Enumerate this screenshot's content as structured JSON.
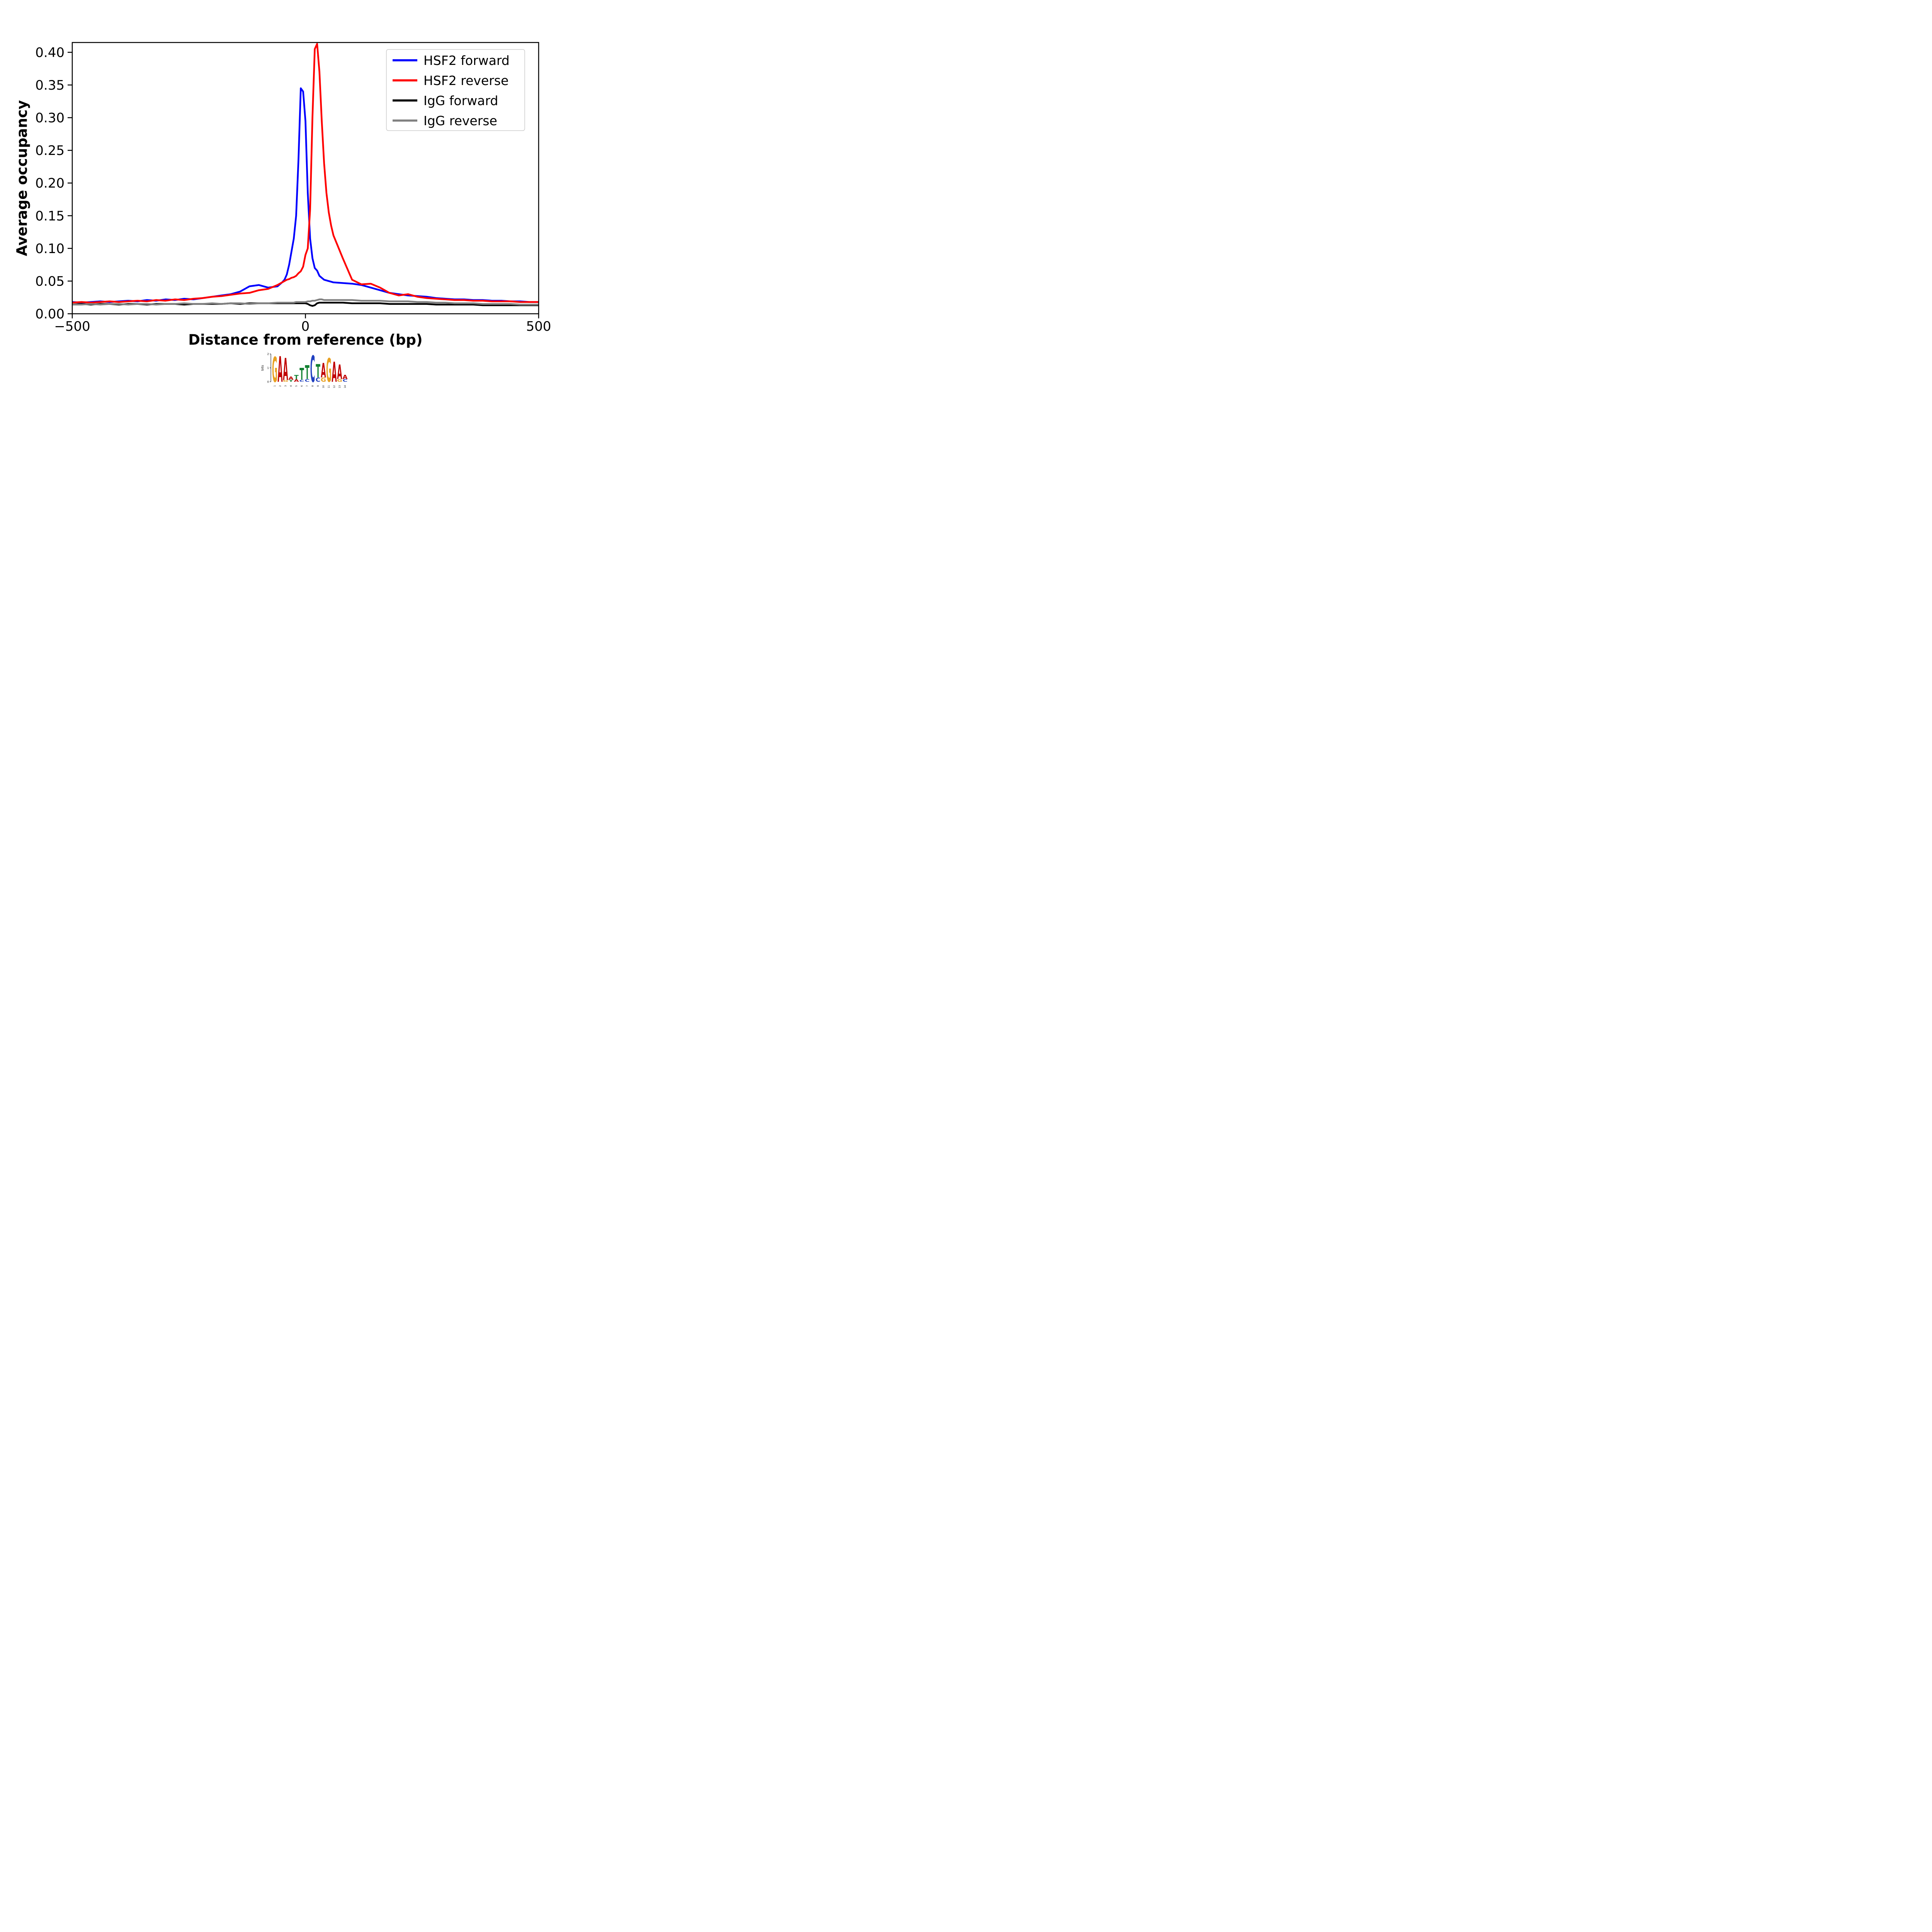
{
  "figure": {
    "background": "#ffffff"
  },
  "chart_data": {
    "type": "line",
    "title": "",
    "xlabel": "Distance from reference (bp)",
    "ylabel": "Average occupancy",
    "xlim": [
      -500,
      500
    ],
    "ylim": [
      0,
      0.415
    ],
    "xticks": [
      -500,
      0,
      500
    ],
    "xtick_labels": [
      "−500",
      "0",
      "500"
    ],
    "yticks": [
      0,
      0.05,
      0.1,
      0.15,
      0.2,
      0.25,
      0.3,
      0.35,
      0.4
    ],
    "ytick_labels": [
      "0.00",
      "0.05",
      "0.10",
      "0.15",
      "0.20",
      "0.25",
      "0.30",
      "0.35",
      "0.40"
    ],
    "grid": false,
    "legend_position": "upper right",
    "x": [
      -500,
      -480,
      -460,
      -440,
      -420,
      -400,
      -380,
      -360,
      -340,
      -320,
      -300,
      -280,
      -260,
      -240,
      -220,
      -200,
      -180,
      -160,
      -140,
      -120,
      -100,
      -80,
      -60,
      -50,
      -45,
      -40,
      -35,
      -30,
      -25,
      -20,
      -15,
      -10,
      -5,
      0,
      5,
      10,
      15,
      20,
      25,
      30,
      35,
      40,
      45,
      50,
      55,
      60,
      80,
      100,
      120,
      140,
      160,
      180,
      200,
      220,
      240,
      260,
      280,
      300,
      320,
      340,
      360,
      380,
      400,
      420,
      440,
      460,
      480,
      500
    ],
    "series": [
      {
        "name": "HSF2 forward",
        "color": "#0000ff",
        "y": [
          0.018,
          0.017,
          0.018,
          0.019,
          0.018,
          0.019,
          0.02,
          0.019,
          0.021,
          0.02,
          0.022,
          0.021,
          0.023,
          0.022,
          0.024,
          0.026,
          0.028,
          0.03,
          0.034,
          0.042,
          0.044,
          0.04,
          0.042,
          0.048,
          0.052,
          0.06,
          0.075,
          0.095,
          0.115,
          0.15,
          0.235,
          0.345,
          0.34,
          0.295,
          0.185,
          0.115,
          0.085,
          0.07,
          0.066,
          0.058,
          0.055,
          0.052,
          0.051,
          0.05,
          0.049,
          0.048,
          0.047,
          0.046,
          0.044,
          0.04,
          0.036,
          0.032,
          0.03,
          0.028,
          0.027,
          0.026,
          0.024,
          0.023,
          0.022,
          0.022,
          0.021,
          0.021,
          0.02,
          0.02,
          0.019,
          0.019,
          0.018,
          0.018
        ]
      },
      {
        "name": "HSF2 reverse",
        "color": "#ff0000",
        "y": [
          0.017,
          0.018,
          0.017,
          0.018,
          0.019,
          0.018,
          0.019,
          0.02,
          0.019,
          0.021,
          0.02,
          0.022,
          0.021,
          0.023,
          0.024,
          0.026,
          0.027,
          0.029,
          0.031,
          0.032,
          0.036,
          0.038,
          0.044,
          0.048,
          0.05,
          0.052,
          0.053,
          0.055,
          0.056,
          0.058,
          0.062,
          0.065,
          0.072,
          0.09,
          0.1,
          0.16,
          0.3,
          0.405,
          0.413,
          0.37,
          0.295,
          0.23,
          0.185,
          0.155,
          0.135,
          0.12,
          0.085,
          0.052,
          0.045,
          0.046,
          0.04,
          0.032,
          0.028,
          0.03,
          0.026,
          0.024,
          0.023,
          0.022,
          0.021,
          0.021,
          0.02,
          0.02,
          0.019,
          0.019,
          0.019,
          0.018,
          0.018,
          0.018
        ]
      },
      {
        "name": "IgG forward",
        "color": "#000000",
        "y": [
          0.014,
          0.015,
          0.014,
          0.015,
          0.015,
          0.014,
          0.015,
          0.015,
          0.014,
          0.015,
          0.015,
          0.015,
          0.014,
          0.015,
          0.015,
          0.015,
          0.015,
          0.016,
          0.015,
          0.016,
          0.016,
          0.016,
          0.016,
          0.016,
          0.016,
          0.016,
          0.016,
          0.016,
          0.016,
          0.016,
          0.016,
          0.016,
          0.016,
          0.016,
          0.015,
          0.013,
          0.012,
          0.013,
          0.016,
          0.017,
          0.017,
          0.017,
          0.017,
          0.017,
          0.017,
          0.017,
          0.017,
          0.016,
          0.016,
          0.016,
          0.016,
          0.015,
          0.015,
          0.015,
          0.015,
          0.015,
          0.014,
          0.014,
          0.014,
          0.014,
          0.014,
          0.013,
          0.013,
          0.013,
          0.013,
          0.013,
          0.013,
          0.013
        ]
      },
      {
        "name": "IgG reverse",
        "color": "#808080",
        "y": [
          0.014,
          0.014,
          0.015,
          0.014,
          0.015,
          0.015,
          0.014,
          0.015,
          0.015,
          0.014,
          0.015,
          0.015,
          0.016,
          0.015,
          0.015,
          0.016,
          0.015,
          0.016,
          0.016,
          0.015,
          0.016,
          0.016,
          0.017,
          0.017,
          0.017,
          0.017,
          0.017,
          0.017,
          0.017,
          0.018,
          0.018,
          0.018,
          0.018,
          0.018,
          0.019,
          0.019,
          0.02,
          0.02,
          0.021,
          0.022,
          0.022,
          0.021,
          0.021,
          0.021,
          0.021,
          0.021,
          0.021,
          0.021,
          0.02,
          0.02,
          0.02,
          0.019,
          0.019,
          0.019,
          0.018,
          0.018,
          0.017,
          0.017,
          0.016,
          0.016,
          0.016,
          0.015,
          0.015,
          0.015,
          0.015,
          0.014,
          0.014,
          0.014
        ]
      }
    ]
  },
  "logo": {
    "ylabel": "bits",
    "yticks": [
      "0",
      "1",
      "2"
    ],
    "xticks": [
      "1",
      "2",
      "3",
      "4",
      "5",
      "6",
      "7",
      "8",
      "9",
      "10",
      "11",
      "12",
      "13",
      "14"
    ],
    "colors": {
      "A": "#c00000",
      "C": "#2040c0",
      "G": "#e8a020",
      "T": "#108030"
    },
    "positions": [
      {
        "n": "1",
        "stack": [
          {
            "c": "G",
            "bits": 1.8,
            "base": "G"
          }
        ]
      },
      {
        "n": "2",
        "stack": [
          {
            "c": "A",
            "bits": 1.85,
            "base": "A"
          }
        ]
      },
      {
        "n": "3",
        "stack": [
          {
            "c": "A",
            "bits": 1.6,
            "base": "A"
          },
          {
            "c": "G",
            "bits": 0.12,
            "base": "G"
          }
        ]
      },
      {
        "n": "4",
        "stack": [
          {
            "c": "A",
            "bits": 0.22,
            "base": "A"
          },
          {
            "c": "T",
            "bits": 0.15,
            "base": "T"
          }
        ]
      },
      {
        "n": "5",
        "stack": [
          {
            "c": "T",
            "bits": 0.3,
            "base": "T"
          },
          {
            "c": "A",
            "bits": 0.18,
            "base": "A"
          }
        ]
      },
      {
        "n": "6",
        "stack": [
          {
            "c": "T",
            "bits": 0.85,
            "base": "T"
          },
          {
            "c": "C",
            "bits": 0.15,
            "base": "C"
          }
        ]
      },
      {
        "n": "7",
        "stack": [
          {
            "c": "T",
            "bits": 1.0,
            "base": "T"
          },
          {
            "c": "C",
            "bits": 0.2,
            "base": "C"
          }
        ]
      },
      {
        "n": "8",
        "stack": [
          {
            "c": "C",
            "bits": 1.9,
            "base": "C"
          }
        ]
      },
      {
        "n": "9",
        "stack": [
          {
            "c": "T",
            "bits": 0.95,
            "base": "T"
          },
          {
            "c": "C",
            "bits": 0.3,
            "base": "C"
          }
        ]
      },
      {
        "n": "10",
        "stack": [
          {
            "c": "A",
            "bits": 1.05,
            "base": "A"
          },
          {
            "c": "G",
            "bits": 0.3,
            "base": "G"
          }
        ]
      },
      {
        "n": "11",
        "stack": [
          {
            "c": "G",
            "bits": 1.7,
            "base": "G"
          }
        ]
      },
      {
        "n": "12",
        "stack": [
          {
            "c": "A",
            "bits": 1.45,
            "base": "A"
          }
        ]
      },
      {
        "n": "13",
        "stack": [
          {
            "c": "A",
            "bits": 1.05,
            "base": "A"
          },
          {
            "c": "G",
            "bits": 0.2,
            "base": "G"
          }
        ]
      },
      {
        "n": "14",
        "stack": [
          {
            "c": "A",
            "bits": 0.3,
            "base": "A"
          },
          {
            "c": "C",
            "bits": 0.2,
            "base": "C"
          }
        ]
      }
    ]
  }
}
